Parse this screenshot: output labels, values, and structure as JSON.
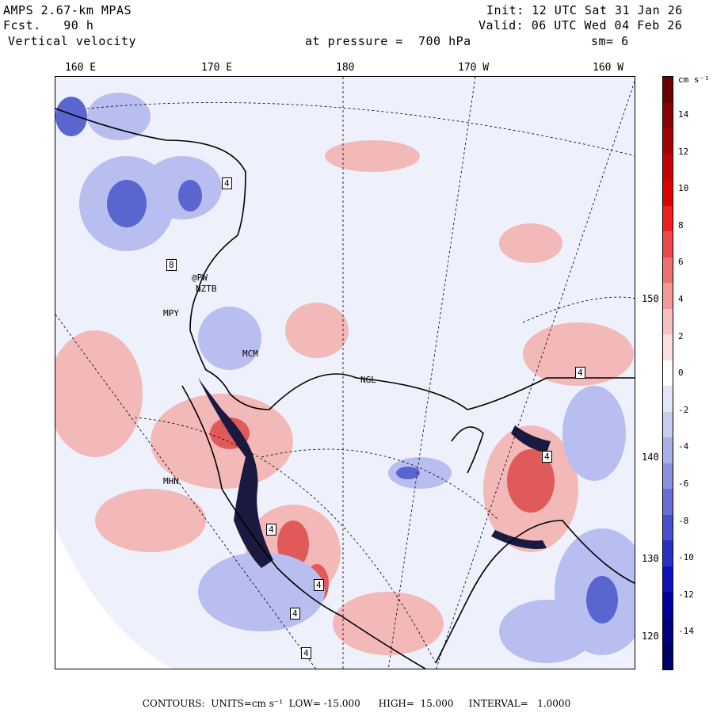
{
  "header": {
    "model": "AMPS 2.67-km MPAS",
    "fcst_label": "Fcst.",
    "fcst_value": "90 h",
    "field": "Vertical velocity",
    "level": "at pressure =  700 hPa",
    "init": "Init: 12 UTC Sat 31 Jan 26",
    "valid": "Valid: 06 UTC Wed 04 Feb 26",
    "smooth": "sm= 6"
  },
  "map": {
    "longitude_labels": [
      "160 E",
      "170 E",
      "180",
      "170 W",
      "160 W"
    ],
    "latitude_labels": [
      "150 W",
      "140 W",
      "130 W",
      "120 W"
    ],
    "stations": [
      "@PW",
      "NZTB",
      "MCM",
      "NGL",
      "MHN",
      "MPY"
    ],
    "contour_labels": [
      "8",
      "4",
      "4",
      "4",
      "4",
      "4",
      "4",
      "4"
    ],
    "colors": {
      "positive": "#e06060",
      "negative": "#6070d0",
      "land": "#ffffff",
      "background": "#eef0fb"
    }
  },
  "colorbar": {
    "units": "cm s⁻¹",
    "ticks": [
      "14",
      "12",
      "10",
      "8",
      "6",
      "4",
      "2",
      "0",
      "-2",
      "-4",
      "-6",
      "-8",
      "-10",
      "-12",
      "-14"
    ],
    "colors": [
      "#6a0000",
      "#8a0000",
      "#a80000",
      "#c80000",
      "#e00000",
      "#f02020",
      "#f04848",
      "#f07070",
      "#f49898",
      "#f8c0c0",
      "#fbe0e0",
      "#ffffff",
      "#e4e6f8",
      "#c8cdf0",
      "#a8b0e8",
      "#8890e0",
      "#6870d8",
      "#4850d0",
      "#2830c8",
      "#1010c0",
      "#0000a0",
      "#000080",
      "#00006a"
    ]
  },
  "footer": {
    "text": "CONTOURS:  UNITS=cm s⁻¹  LOW= -15.000      HIGH=  15.000     INTERVAL=   1.0000"
  }
}
